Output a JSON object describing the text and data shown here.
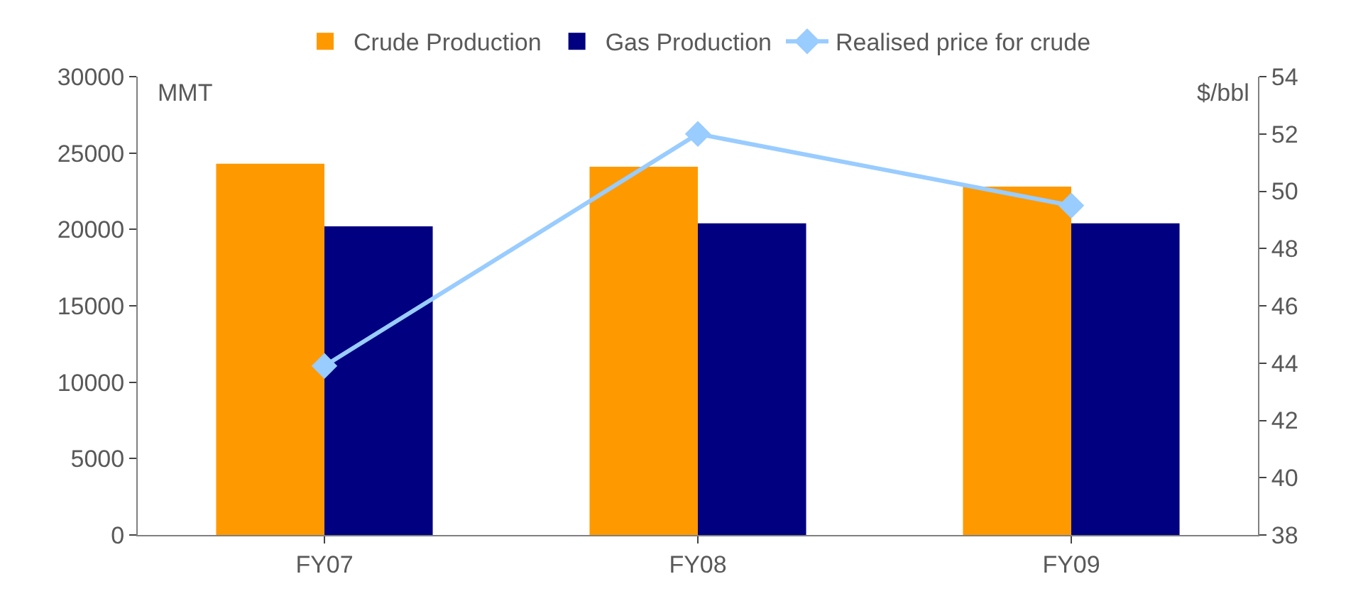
{
  "chart_data": {
    "type": "bar",
    "categories": [
      "FY07",
      "FY08",
      "FY09"
    ],
    "series": [
      {
        "name": "Crude Production",
        "color": "#ff9900",
        "values": [
          24300,
          24100,
          22800
        ]
      },
      {
        "name": "Gas Production",
        "color": "#000080",
        "values": [
          20200,
          20400,
          20400
        ]
      },
      {
        "name": "Realised price for crude",
        "type": "line",
        "axis": "y2",
        "color": "#99ccff",
        "values": [
          43.9,
          52.0,
          49.5
        ]
      }
    ],
    "ylabel": "MMT",
    "y2label": "$/bbl",
    "ylim": [
      0,
      30000
    ],
    "yticks": [
      0,
      5000,
      10000,
      15000,
      20000,
      25000,
      30000
    ],
    "y2lim": [
      38,
      54
    ],
    "y2ticks": [
      38,
      40,
      42,
      44,
      46,
      48,
      50,
      52,
      54
    ],
    "marker": "diamond",
    "grid": false,
    "legend": "top"
  }
}
